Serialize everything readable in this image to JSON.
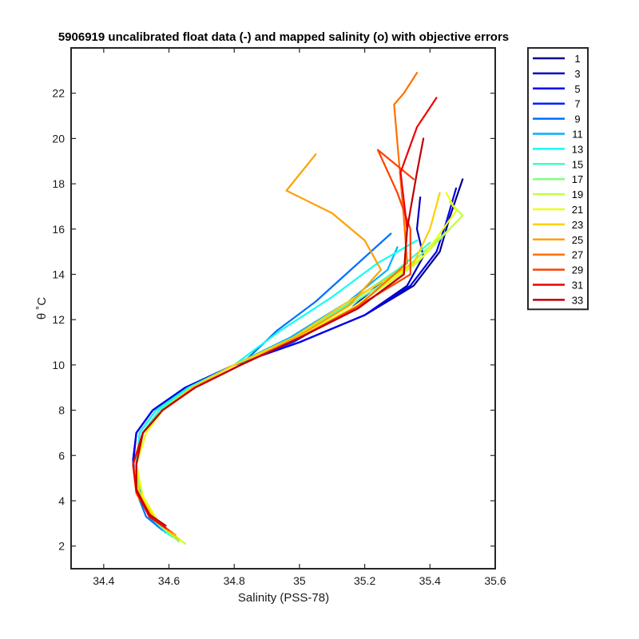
{
  "chart_data": {
    "type": "line",
    "title": "5906919 uncalibrated float data (-) and mapped salinity (o) with objective errors",
    "xlabel": "Salinity (PSS-78)",
    "ylabel": "θ ˚C",
    "xlim": [
      34.3,
      35.6
    ],
    "ylim": [
      1,
      24
    ],
    "xticks": [
      34.4,
      34.6,
      34.8,
      35,
      35.2,
      35.4,
      35.6
    ],
    "yticks": [
      2,
      4,
      6,
      8,
      10,
      12,
      14,
      16,
      18,
      20,
      22
    ],
    "grid": false,
    "legend_position": "outside-top-right",
    "series": [
      {
        "name": "1",
        "color": "#00008f",
        "x": [
          34.59,
          34.54,
          34.5,
          34.49,
          34.5,
          34.55,
          34.65,
          34.8,
          35.0,
          35.2,
          35.35,
          35.43,
          35.46,
          35.5
        ],
        "y": [
          2.6,
          3.3,
          4.5,
          5.8,
          7.0,
          8.0,
          9.0,
          10.0,
          11.0,
          12.2,
          13.5,
          15.0,
          16.5,
          18.2
        ]
      },
      {
        "name": "3",
        "color": "#0000bf",
        "x": [
          34.59,
          34.54,
          34.5,
          34.49,
          34.5,
          34.55,
          34.65,
          34.8,
          35.0,
          35.2,
          35.33,
          35.38,
          35.36,
          35.37
        ],
        "y": [
          2.6,
          3.3,
          4.5,
          5.6,
          7.0,
          8.0,
          9.0,
          10.0,
          11.0,
          12.2,
          13.5,
          14.8,
          16.0,
          17.4
        ]
      },
      {
        "name": "5",
        "color": "#0000ef",
        "x": [
          34.59,
          34.54,
          34.5,
          34.49,
          34.5,
          34.55,
          34.65,
          34.8,
          35.0,
          35.2,
          35.34,
          35.42,
          35.45,
          35.48
        ],
        "y": [
          2.6,
          3.3,
          4.5,
          5.8,
          7.0,
          8.0,
          9.0,
          10.0,
          11.0,
          12.2,
          13.5,
          15.0,
          16.3,
          17.8
        ]
      },
      {
        "name": "7",
        "color": "#0020ff",
        "x": [
          34.59,
          34.54,
          34.51,
          34.5,
          34.51,
          34.56,
          34.66,
          34.8,
          34.98,
          35.15,
          35.28
        ],
        "y": [
          2.7,
          3.4,
          4.5,
          5.5,
          7.0,
          8.0,
          9.0,
          10.0,
          11.0,
          12.4,
          14.0
        ]
      },
      {
        "name": "9",
        "color": "#0070ff",
        "x": [
          34.58,
          34.53,
          34.5,
          34.5,
          34.52,
          34.57,
          34.68,
          34.82,
          34.93,
          35.05,
          35.28
        ],
        "y": [
          2.7,
          3.3,
          4.4,
          5.6,
          7.0,
          8.0,
          9.0,
          10.0,
          11.5,
          12.8,
          15.8
        ]
      },
      {
        "name": "11",
        "color": "#00b0ff",
        "x": [
          34.59,
          34.54,
          34.5,
          34.5,
          34.51,
          34.56,
          34.66,
          34.8,
          34.97,
          35.15,
          35.27,
          35.3
        ],
        "y": [
          2.6,
          3.3,
          4.4,
          5.6,
          7.0,
          8.0,
          9.0,
          10.0,
          11.2,
          12.8,
          14.2,
          15.2
        ]
      },
      {
        "name": "13",
        "color": "#10ffef",
        "x": [
          34.6,
          34.55,
          34.51,
          34.5,
          34.51,
          34.56,
          34.66,
          34.8,
          34.94,
          35.1,
          35.24,
          35.36
        ],
        "y": [
          2.5,
          3.2,
          4.4,
          5.6,
          7.0,
          8.0,
          9.0,
          10.0,
          11.5,
          13.0,
          14.5,
          15.5
        ]
      },
      {
        "name": "15",
        "color": "#40ffbf",
        "x": [
          34.61,
          34.55,
          34.51,
          34.5,
          34.52,
          34.57,
          34.67,
          34.8,
          34.98,
          35.14,
          35.3,
          35.4
        ],
        "y": [
          2.4,
          3.2,
          4.4,
          5.6,
          7.0,
          8.0,
          9.0,
          10.0,
          11.2,
          12.6,
          14.2,
          15.4
        ]
      },
      {
        "name": "17",
        "color": "#80ff80",
        "x": [
          34.63,
          34.56,
          34.51,
          34.5,
          34.53,
          34.58,
          34.67,
          34.8,
          34.98,
          35.15,
          35.32,
          35.46
        ],
        "y": [
          2.2,
          3.1,
          4.3,
          5.6,
          7.0,
          8.0,
          9.0,
          10.0,
          11.2,
          12.6,
          14.2,
          16.0
        ]
      },
      {
        "name": "19",
        "color": "#bfff40",
        "x": [
          34.65,
          34.57,
          34.52,
          34.5,
          34.53,
          34.58,
          34.67,
          34.8,
          34.99,
          35.17,
          35.36,
          35.5,
          35.46
        ],
        "y": [
          2.1,
          3.0,
          4.2,
          5.6,
          7.0,
          8.0,
          9.0,
          10.0,
          11.2,
          12.6,
          14.5,
          16.6,
          17.2
        ]
      },
      {
        "name": "21",
        "color": "#efff10",
        "x": [
          34.64,
          34.57,
          34.52,
          34.5,
          34.53,
          34.58,
          34.67,
          34.8,
          34.99,
          35.17,
          35.38,
          35.48,
          35.45
        ],
        "y": [
          2.2,
          3.0,
          4.2,
          5.6,
          7.0,
          8.0,
          9.0,
          10.0,
          11.2,
          12.6,
          14.8,
          16.8,
          17.6
        ]
      },
      {
        "name": "23",
        "color": "#ffcf00",
        "x": [
          34.63,
          34.56,
          34.51,
          34.49,
          34.52,
          34.58,
          34.67,
          34.8,
          34.98,
          35.15,
          35.35,
          35.4,
          35.43
        ],
        "y": [
          2.3,
          3.1,
          4.3,
          5.6,
          7.0,
          8.0,
          9.0,
          10.0,
          11.2,
          12.8,
          14.5,
          16.0,
          17.6
        ]
      },
      {
        "name": "25",
        "color": "#ffa000",
        "x": [
          34.62,
          34.55,
          34.5,
          34.49,
          34.52,
          34.58,
          34.68,
          34.82,
          35.0,
          35.15,
          35.25,
          35.2,
          35.1,
          34.96,
          35.05
        ],
        "y": [
          2.5,
          3.2,
          4.3,
          5.6,
          7.0,
          8.0,
          9.0,
          10.0,
          11.3,
          12.6,
          14.2,
          15.5,
          16.7,
          17.7,
          19.3
        ]
      },
      {
        "name": "27",
        "color": "#ff7000",
        "x": [
          34.61,
          34.55,
          34.5,
          34.49,
          34.52,
          34.58,
          34.68,
          34.82,
          35.0,
          35.18,
          35.33,
          35.32,
          35.29,
          35.32,
          35.36
        ],
        "y": [
          2.6,
          3.2,
          4.4,
          5.6,
          7.0,
          8.0,
          9.0,
          10.0,
          11.2,
          12.6,
          14.5,
          16.5,
          21.5,
          22.0,
          22.9
        ]
      },
      {
        "name": "29",
        "color": "#ff4000",
        "x": [
          34.6,
          34.54,
          34.5,
          34.49,
          34.52,
          34.58,
          34.68,
          34.82,
          35.0,
          35.18,
          35.34,
          35.34,
          35.3,
          35.24,
          35.35
        ],
        "y": [
          2.7,
          3.3,
          4.4,
          5.6,
          7.0,
          8.0,
          9.0,
          10.0,
          11.2,
          12.6,
          14.0,
          16.0,
          17.6,
          19.5,
          18.2
        ]
      },
      {
        "name": "31",
        "color": "#ef0000",
        "x": [
          34.59,
          34.54,
          34.5,
          34.49,
          34.52,
          34.58,
          34.68,
          34.82,
          35.0,
          35.18,
          35.32,
          35.33,
          35.31,
          35.36,
          35.42
        ],
        "y": [
          2.8,
          3.3,
          4.4,
          5.6,
          7.0,
          8.0,
          9.0,
          10.0,
          11.2,
          12.5,
          14.0,
          16.0,
          18.5,
          20.5,
          21.8
        ]
      },
      {
        "name": "33",
        "color": "#bf0000",
        "x": [
          34.59,
          34.54,
          34.5,
          34.5,
          34.52,
          34.58,
          34.68,
          34.82,
          35.0,
          35.18,
          35.32,
          35.33,
          35.36,
          35.38
        ],
        "y": [
          2.9,
          3.4,
          4.5,
          5.6,
          7.0,
          8.0,
          9.0,
          10.0,
          11.2,
          12.5,
          14.0,
          16.0,
          18.5,
          20.0
        ]
      }
    ]
  }
}
